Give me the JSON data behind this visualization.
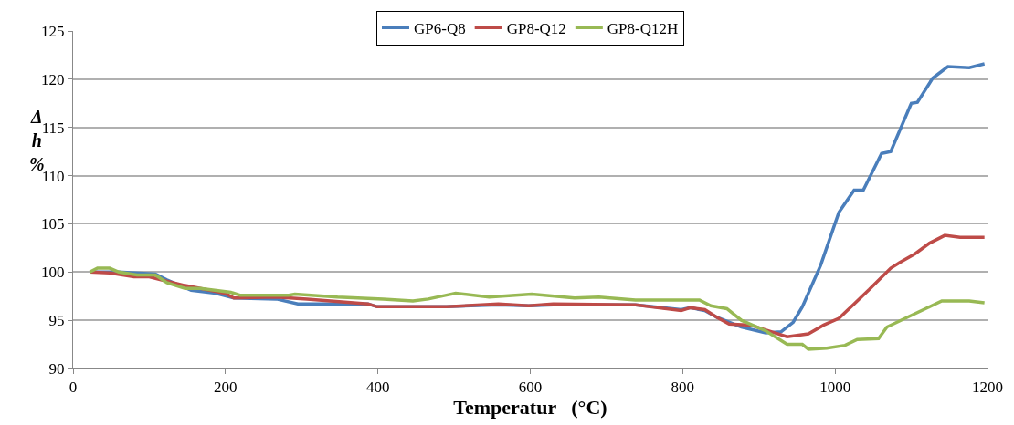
{
  "chart_data": {
    "type": "line",
    "xlabel": "Temperatur   (°C)",
    "ylabel": "Δ h %",
    "xlim": [
      0,
      1200
    ],
    "xticks": [
      0,
      200,
      400,
      600,
      800,
      1000,
      1200
    ],
    "ylim": [
      90,
      125
    ],
    "yticks": [
      90,
      95,
      100,
      105,
      110,
      115,
      120,
      125
    ],
    "grid": "y",
    "legend": "top",
    "marker": "none",
    "line_style": "solid",
    "series": [
      {
        "name": "GP6-Q8",
        "color": "#4a7ebb",
        "x": [
          22,
          60,
          108,
          123,
          155,
          187,
          211,
          267,
          295,
          387,
          399,
          490,
          558,
          598,
          630,
          738,
          798,
          810,
          829,
          845,
          877,
          909,
          929,
          945,
          957,
          981,
          1005,
          1025,
          1037,
          1061,
          1073,
          1100,
          1108,
          1128,
          1148,
          1176,
          1196
        ],
        "values": [
          100.0,
          100.0,
          99.8,
          99.2,
          98.1,
          97.8,
          97.3,
          97.2,
          96.7,
          96.7,
          96.4,
          96.4,
          96.6,
          96.5,
          96.6,
          96.6,
          96.1,
          96.3,
          96.0,
          95.3,
          94.3,
          93.7,
          93.8,
          94.8,
          96.4,
          100.7,
          106.2,
          108.5,
          108.5,
          112.3,
          112.5,
          117.5,
          117.6,
          120.1,
          121.3,
          121.2,
          121.6
        ]
      },
      {
        "name": "GP8-Q12",
        "color": "#be4b48",
        "x": [
          22,
          48,
          80,
          100,
          120,
          147,
          167,
          199,
          211,
          267,
          307,
          387,
          399,
          490,
          558,
          598,
          630,
          738,
          798,
          810,
          829,
          845,
          861,
          889,
          917,
          937,
          965,
          985,
          1005,
          1025,
          1045,
          1073,
          1085,
          1105,
          1124,
          1144,
          1164,
          1196
        ],
        "values": [
          100.0,
          99.9,
          99.5,
          99.5,
          99.1,
          98.6,
          98.3,
          97.8,
          97.3,
          97.4,
          97.2,
          96.7,
          96.4,
          96.4,
          96.7,
          96.5,
          96.7,
          96.6,
          96.0,
          96.3,
          96.1,
          95.3,
          94.6,
          94.5,
          93.8,
          93.3,
          93.6,
          94.5,
          95.2,
          96.7,
          98.2,
          100.4,
          101.0,
          101.9,
          103.0,
          103.8,
          103.6,
          103.6
        ]
      },
      {
        "name": "GP8-Q12H",
        "color": "#98b954",
        "x": [
          22,
          32,
          48,
          60,
          84,
          108,
          123,
          147,
          167,
          207,
          219,
          283,
          291,
          347,
          407,
          446,
          466,
          490,
          502,
          546,
          602,
          658,
          690,
          738,
          822,
          837,
          858,
          877,
          909,
          937,
          957,
          965,
          989,
          1013,
          1029,
          1057,
          1068,
          1092,
          1116,
          1140,
          1176,
          1196
        ],
        "values": [
          100.0,
          100.4,
          100.4,
          100.0,
          99.7,
          99.7,
          98.9,
          98.3,
          98.3,
          97.9,
          97.6,
          97.6,
          97.7,
          97.4,
          97.2,
          97.0,
          97.2,
          97.6,
          97.8,
          97.4,
          97.7,
          97.3,
          97.4,
          97.1,
          97.1,
          96.5,
          96.2,
          95.0,
          93.9,
          92.5,
          92.5,
          92.0,
          92.1,
          92.4,
          93.0,
          93.1,
          94.3,
          95.2,
          96.1,
          97.0,
          97.0,
          96.8
        ]
      }
    ]
  }
}
